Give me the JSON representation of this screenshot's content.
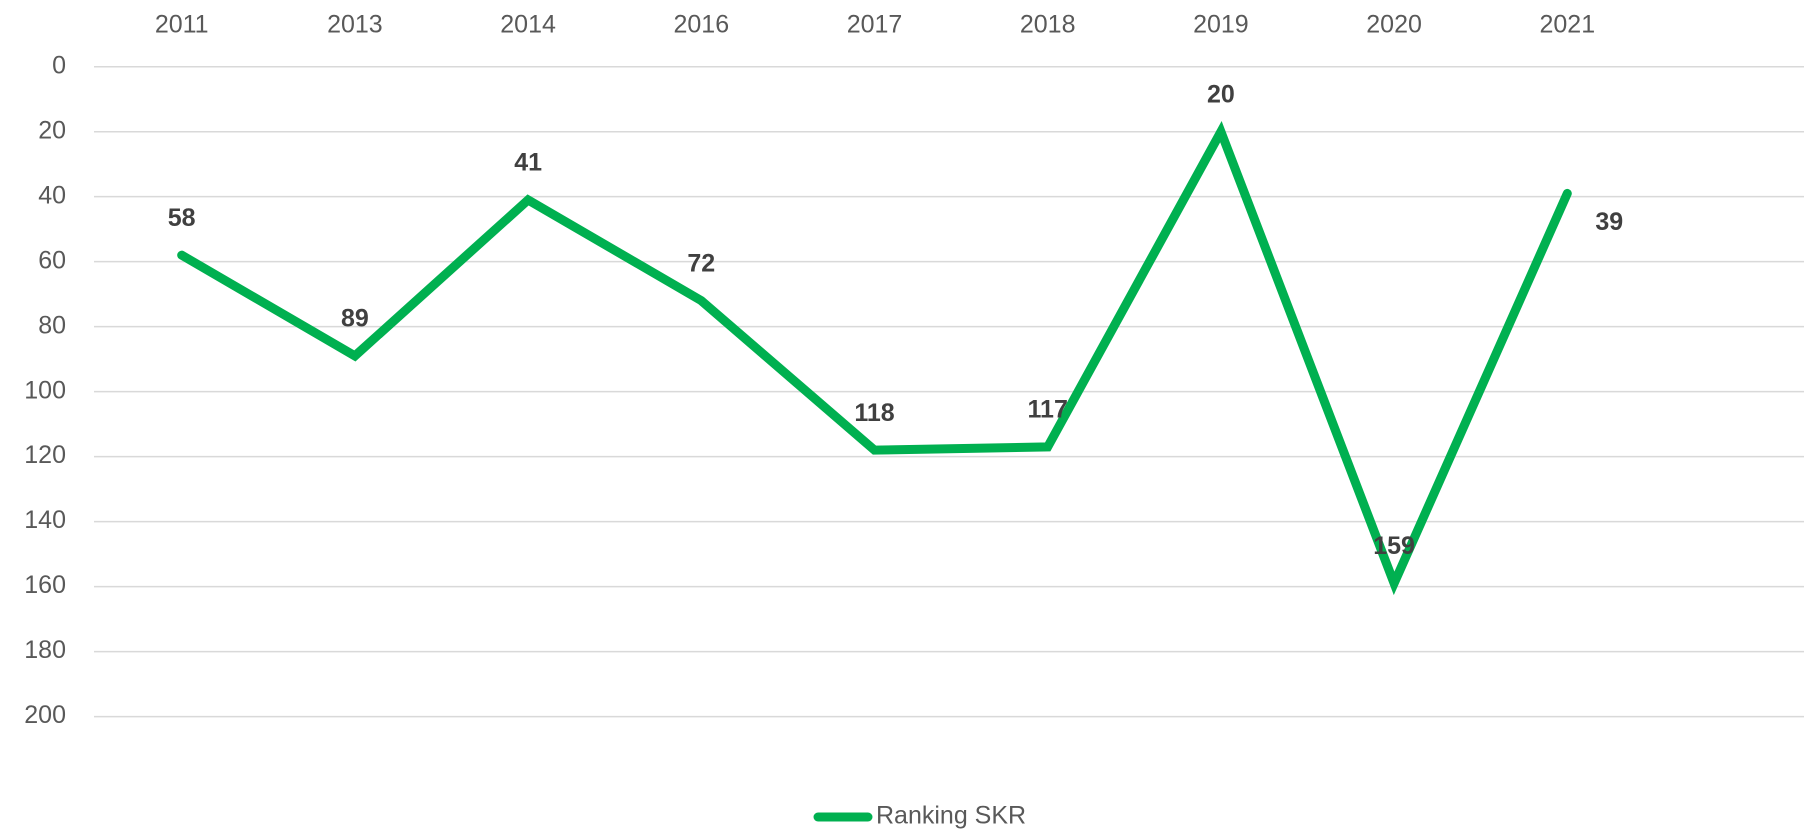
{
  "chart_data": {
    "type": "line",
    "categories": [
      "2011",
      "2013",
      "2014",
      "2016",
      "2017",
      "2018",
      "2019",
      "2020",
      "2021"
    ],
    "series": [
      {
        "name": "Ranking SKR",
        "color": "#00b050",
        "values": [
          58,
          89,
          41,
          72,
          118,
          117,
          20,
          159,
          39
        ]
      }
    ],
    "ylim": [
      0,
      200
    ],
    "yticks": [
      0,
      20,
      40,
      60,
      80,
      100,
      120,
      140,
      160,
      180,
      200
    ],
    "y_inverted": true,
    "grid": true,
    "legend": "bottom",
    "x_axis_position": "top",
    "data_labels": true
  }
}
